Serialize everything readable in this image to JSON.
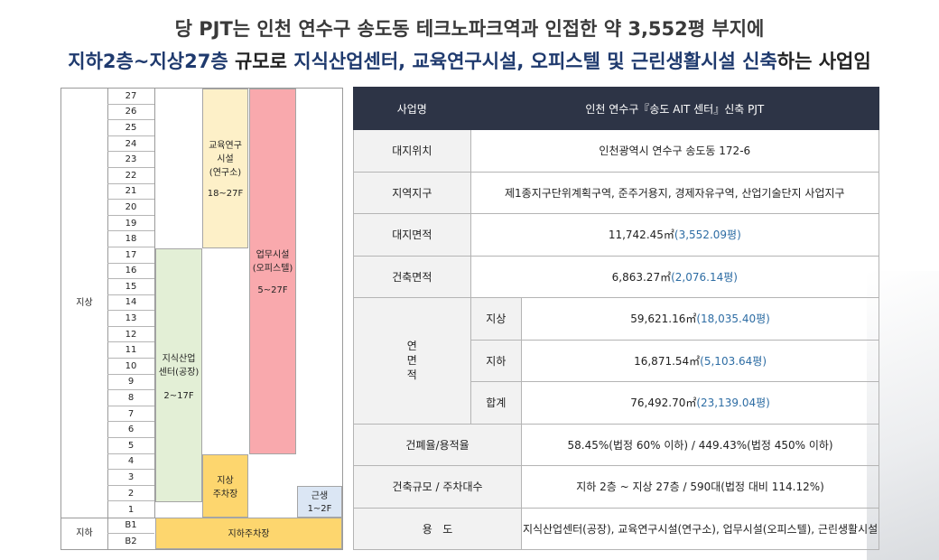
{
  "heading": {
    "line1": "당 PJT는 인천 연수구 송도동 테크노파크역과 인접한 약 3,552평 부지에",
    "line2_highlight": "지하2층~지상27층",
    "line2_part2": " 규모로 ",
    "line2_highlight2": "지식산업센터, 교육연구시설, 오피스텔 및 근린생활시설 신축",
    "line2_part3": "하는 사업임"
  },
  "diagram": {
    "above_label": "지상",
    "below_label": "지하",
    "floors_above": [
      "27",
      "26",
      "25",
      "24",
      "23",
      "22",
      "21",
      "20",
      "19",
      "18",
      "17",
      "16",
      "15",
      "14",
      "13",
      "12",
      "11",
      "10",
      "9",
      "8",
      "7",
      "6",
      "5",
      "4",
      "3",
      "2",
      "1"
    ],
    "floors_below": [
      "B1",
      "B2"
    ],
    "blocks": {
      "education": {
        "line1": "교육연구",
        "line2": "시설",
        "line3": "(연구소)",
        "range": "18~27F",
        "color": "#fdf0c8"
      },
      "office": {
        "line1": "업무시설",
        "line2": "(오피스텔)",
        "range": "5~27F",
        "color": "#f9a9ad"
      },
      "knowledge": {
        "line1": "지식산업",
        "line2": "센터(공장)",
        "range": "2~17F",
        "color": "#e3efd6"
      },
      "parking_above": {
        "line1": "지상",
        "line2": "주차장",
        "color": "#fdd66e"
      },
      "retail": {
        "line1": "근생",
        "line2": "1~2F",
        "color": "#dbe6f4"
      },
      "parking_below": {
        "label": "지하주차장",
        "color": "#fdd66e"
      }
    }
  },
  "table": {
    "header": {
      "label": "사업명",
      "value": "인천 연수구『송도 AIT 센터』신축 PJT"
    },
    "site_location": {
      "label": "대지위치",
      "value": "인천광역시 연수구 송도동 172-6"
    },
    "zone": {
      "label": "지역지구",
      "value": "제1종지구단위계획구역, 준주거용지, 경제자유구역, 산업기술단지 사업지구"
    },
    "site_area": {
      "label": "대지면적",
      "value": "11,742.45㎡",
      "pyeong": "(3,552.09평)"
    },
    "building_area": {
      "label": "건축면적",
      "value": "6,863.27㎡",
      "pyeong": "(2,076.14평)"
    },
    "gfa": {
      "label_chars": [
        "연",
        "면",
        "적"
      ],
      "above": {
        "label": "지상",
        "value": "59,621.16㎡",
        "pyeong": "(18,035.40평)"
      },
      "below": {
        "label": "지하",
        "value": "16,871.54㎡",
        "pyeong": "(5,103.64평)"
      },
      "total": {
        "label": "합계",
        "value": "76,492.70㎡",
        "pyeong": "(23,139.04평)"
      }
    },
    "ratio": {
      "label": "건폐율/용적율",
      "value": "58.45%(법정 60% 이하) / 449.43%(법정 450% 이하)"
    },
    "scale": {
      "label": "건축규모 / 주차대수",
      "value": "지하 2층 ~ 지상 27층 / 590대(법정 대비 114.12%)"
    },
    "use": {
      "label": "용   도",
      "value": "지식산업센터(공장), 교육연구시설(연구소), 업무시설(오피스텔), 근린생활시설"
    }
  }
}
